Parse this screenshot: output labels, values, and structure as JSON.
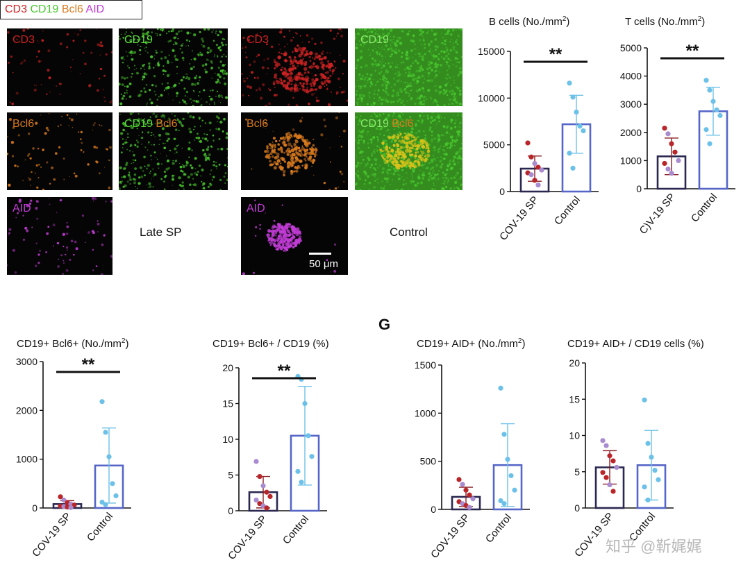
{
  "legend": {
    "items": [
      {
        "text": "CD3",
        "color": "#cc2222"
      },
      {
        "text": "CD19",
        "color": "#49c82e"
      },
      {
        "text": "Bcl6",
        "color": "#d87a1e"
      },
      {
        "text": "AID",
        "color": "#c23cd6"
      }
    ]
  },
  "micrographs": {
    "late": {
      "cd3": "CD3",
      "cd19": "CD19",
      "bcl6": "Bcl6",
      "merge_cd19": "CD19",
      "merge_bcl6": "Bcl6",
      "aid": "AID",
      "condition": "Late SP"
    },
    "control": {
      "cd3": "CD3",
      "cd19": "CD19",
      "bcl6": "Bcl6",
      "merge_cd19": "CD19",
      "merge_bcl6": "Bcl6",
      "aid": "AID",
      "condition": "Control",
      "scale": "50 μm"
    },
    "colors": {
      "cd3": "#cc2222",
      "cd19": "#49c82e",
      "bcl6": "#d87a1e",
      "aid": "#c23cd6"
    }
  },
  "panel_letter": "G",
  "watermark": "知乎 @靳娓娓",
  "chart_data": [
    {
      "id": "b-cells",
      "type": "bar",
      "title": "B cells (No./mm",
      "title_sup": "2",
      "title_tail": ")",
      "categories": [
        "COV-19 SP",
        "Control"
      ],
      "ylim": [
        0,
        15000
      ],
      "yticks": [
        0,
        5000,
        10000,
        15000
      ],
      "means": [
        2450,
        7200
      ],
      "sd": [
        1350,
        3100
      ],
      "significance": "**",
      "points": [
        [
          5200,
          3700,
          3000,
          2600,
          2300,
          2000,
          1800,
          1200,
          700
        ],
        [
          11600,
          10100,
          8500,
          7000,
          6500,
          4100,
          2500
        ]
      ],
      "point_colors": [
        [
          "#b9262a",
          "#b9262a",
          "#a98ccf",
          "#b9262a",
          "#a98ccf",
          "#b9262a",
          "#a98ccf",
          "#b9262a",
          "#a98ccf"
        ],
        [
          "#6dc1e8",
          "#6dc1e8",
          "#6dc1e8",
          "#6dc1e8",
          "#6dc1e8",
          "#6dc1e8",
          "#6dc1e8"
        ]
      ]
    },
    {
      "id": "t-cells",
      "type": "bar",
      "title": "T cells (No./mm",
      "title_sup": "2",
      "title_tail": ")",
      "categories": [
        "C)V-19 SP",
        "Control"
      ],
      "ylim": [
        0,
        5000
      ],
      "yticks": [
        0,
        1000,
        2000,
        3000,
        4000,
        5000
      ],
      "means": [
        1150,
        2750
      ],
      "sd": [
        650,
        850
      ],
      "significance": "**",
      "points": [
        [
          2150,
          1950,
          1600,
          1300,
          1000,
          900,
          700,
          550
        ],
        [
          3850,
          3500,
          3100,
          2800,
          2600,
          2100,
          1600
        ]
      ],
      "point_colors": [
        [
          "#b9262a",
          "#a98ccf",
          "#b9262a",
          "#b9262a",
          "#a98ccf",
          "#b9262a",
          "#a98ccf",
          "#a98ccf"
        ],
        [
          "#6dc1e8",
          "#6dc1e8",
          "#6dc1e8",
          "#6dc1e8",
          "#6dc1e8",
          "#6dc1e8",
          "#6dc1e8"
        ]
      ]
    },
    {
      "id": "cd19-bcl6",
      "type": "bar",
      "title": "CD19+ Bcl6+ (No./mm",
      "title_sup": "2",
      "title_tail": ")",
      "categories": [
        "COV-19 SP",
        "Control"
      ],
      "ylim": [
        0,
        3000
      ],
      "yticks": [
        0,
        1000,
        2000,
        3000
      ],
      "means": [
        80,
        870
      ],
      "sd": [
        70,
        770
      ],
      "significance": "**",
      "points": [
        [
          230,
          160,
          110,
          80,
          60,
          40,
          30,
          20,
          10
        ],
        [
          2180,
          1550,
          1050,
          500,
          250,
          120,
          70
        ]
      ],
      "point_colors": [
        [
          "#b9262a",
          "#a98ccf",
          "#b9262a",
          "#a98ccf",
          "#b9262a",
          "#b9262a",
          "#a98ccf",
          "#b9262a",
          "#a98ccf"
        ],
        [
          "#6dc1e8",
          "#6dc1e8",
          "#6dc1e8",
          "#6dc1e8",
          "#6dc1e8",
          "#6dc1e8",
          "#6dc1e8"
        ]
      ]
    },
    {
      "id": "cd19-bcl6-pct",
      "type": "bar",
      "title": "CD19+ Bcl6+ / CD19 (%)",
      "title_sup": "",
      "title_tail": "",
      "categories": [
        "COV-19 SP",
        "Control"
      ],
      "ylim": [
        0,
        20
      ],
      "yticks": [
        0,
        5,
        10,
        15,
        20
      ],
      "means": [
        2.6,
        10.5
      ],
      "sd": [
        2.2,
        6.9
      ],
      "significance": "**",
      "points": [
        [
          6.9,
          4.8,
          3.5,
          2.6,
          2.0,
          1.5,
          1.0,
          0.7,
          0.4
        ],
        [
          18.8,
          18.4,
          15.0,
          10.5,
          7.6,
          5.5,
          4.0
        ]
      ],
      "point_colors": [
        [
          "#a98ccf",
          "#b9262a",
          "#a98ccf",
          "#b9262a",
          "#b9262a",
          "#a98ccf",
          "#b9262a",
          "#a98ccf",
          "#b9262a"
        ],
        [
          "#6dc1e8",
          "#6dc1e8",
          "#6dc1e8",
          "#6dc1e8",
          "#6dc1e8",
          "#6dc1e8",
          "#6dc1e8"
        ]
      ]
    },
    {
      "id": "cd19-aid",
      "type": "bar",
      "title": "CD19+ AID+ (No./mm",
      "title_sup": "2",
      "title_tail": ")",
      "categories": [
        "COV-19 SP",
        "Control"
      ],
      "ylim": [
        0,
        1500
      ],
      "yticks": [
        0,
        500,
        1000,
        1500
      ],
      "means": [
        130,
        460
      ],
      "sd": [
        100,
        430
      ],
      "significance": "",
      "points": [
        [
          310,
          260,
          200,
          150,
          110,
          80,
          60,
          40,
          20
        ],
        [
          1260,
          780,
          520,
          350,
          200,
          90,
          60
        ]
      ],
      "point_colors": [
        [
          "#b9262a",
          "#a98ccf",
          "#b9262a",
          "#b9262a",
          "#a98ccf",
          "#b9262a",
          "#a98ccf",
          "#b9262a",
          "#a98ccf"
        ],
        [
          "#6dc1e8",
          "#6dc1e8",
          "#6dc1e8",
          "#6dc1e8",
          "#6dc1e8",
          "#6dc1e8",
          "#6dc1e8"
        ]
      ]
    },
    {
      "id": "cd19-aid-pct",
      "type": "bar",
      "title": "CD19+ AID+ / CD19 cells (%)",
      "title_sup": "",
      "title_tail": "",
      "categories": [
        "COV-19 SP",
        "Control"
      ],
      "ylim": [
        0,
        20
      ],
      "yticks": [
        0,
        5,
        10,
        15,
        20
      ],
      "means": [
        5.6,
        5.9
      ],
      "sd": [
        2.3,
        4.8
      ],
      "significance": "",
      "points": [
        [
          9.3,
          8.6,
          7.2,
          6.5,
          5.6,
          4.9,
          4.2,
          3.2,
          2.3
        ],
        [
          14.9,
          8.9,
          7.0,
          5.2,
          3.9,
          2.9,
          1.1
        ]
      ],
      "point_colors": [
        [
          "#a98ccf",
          "#a98ccf",
          "#b9262a",
          "#b9262a",
          "#a98ccf",
          "#b9262a",
          "#b9262a",
          "#a98ccf",
          "#b9262a"
        ],
        [
          "#6dc1e8",
          "#6dc1e8",
          "#6dc1e8",
          "#6dc1e8",
          "#6dc1e8",
          "#6dc1e8",
          "#6dc1e8"
        ]
      ]
    }
  ]
}
